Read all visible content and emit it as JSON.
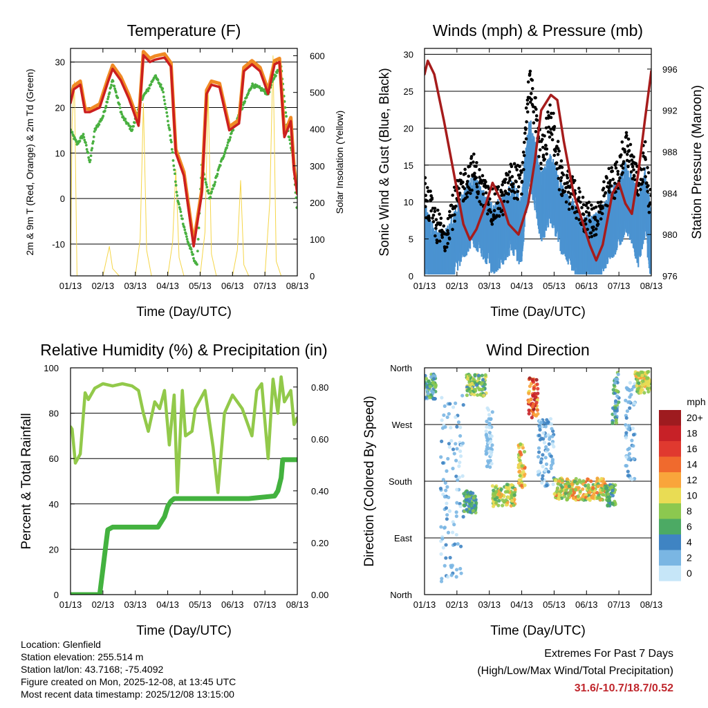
{
  "colors": {
    "temp_2m": "#cc1f1f",
    "temp_9m": "#f08a24",
    "dewpoint": "#49b040",
    "solar": "#f5d547",
    "gust": "#000000",
    "sonic": "#4b93d1",
    "pressure": "#a61c1c",
    "rh": "#92c94a",
    "precip": "#43b23f"
  },
  "x_ticks": [
    "01/13",
    "02/13",
    "03/13",
    "04/13",
    "05/13",
    "06/13",
    "07/13",
    "08/13"
  ],
  "time_label": "Time (Day/UTC)",
  "chart_data": [
    {
      "id": "temperature",
      "type": "line",
      "title": "Temperature (F)",
      "xlabel": "Time (Day/UTC)",
      "ylabel": "2m & 9m T (Red, Orange) & 2m Td (Green)",
      "ylabel2": "Solar Insolation (Yellow)",
      "ylim": [
        -17,
        33
      ],
      "y2lim": [
        0,
        620
      ],
      "yticks": [
        30,
        20,
        10,
        0,
        -10
      ],
      "ytick_labels": [
        "30",
        "20",
        "10",
        "0",
        "-10"
      ],
      "y2ticks": [
        600,
        500,
        400,
        300,
        200,
        100,
        0
      ],
      "x_range": [
        0,
        7
      ],
      "series": [
        {
          "name": "2m T",
          "x": [
            0,
            0.1,
            0.3,
            0.45,
            0.6,
            0.9,
            1.15,
            1.3,
            1.55,
            1.8,
            2.1,
            2.25,
            2.45,
            2.6,
            2.9,
            3.1,
            3.25,
            3.5,
            3.8,
            4.05,
            4.2,
            4.35,
            4.6,
            4.9,
            5.2,
            5.35,
            5.6,
            5.85,
            6.1,
            6.3,
            6.45,
            6.6,
            6.8,
            6.9,
            7
          ],
          "y": [
            21,
            24,
            25,
            19,
            19,
            20,
            25.5,
            28.5,
            26,
            22,
            16,
            31.5,
            30,
            30.5,
            31,
            29,
            10,
            5,
            -10.5,
            1,
            23,
            25,
            24.5,
            15,
            16.5,
            28,
            29.5,
            28,
            23,
            29.5,
            30,
            13.5,
            17,
            6,
            1
          ]
        },
        {
          "name": "9m T",
          "x": [
            0,
            0.1,
            0.3,
            0.45,
            0.6,
            0.9,
            1.15,
            1.3,
            1.55,
            1.8,
            2.1,
            2.25,
            2.45,
            2.6,
            2.9,
            3.1,
            3.25,
            3.5,
            3.8,
            4.05,
            4.2,
            4.35,
            4.6,
            4.9,
            5.2,
            5.35,
            5.6,
            5.85,
            6.1,
            6.3,
            6.45,
            6.6,
            6.8,
            6.9,
            7
          ],
          "y": [
            21.8,
            24.8,
            25.8,
            19.8,
            19.6,
            20.8,
            26.3,
            29.3,
            26.8,
            22.8,
            16.8,
            32.3,
            30.8,
            31.3,
            31.8,
            29.8,
            10.8,
            5.8,
            -9.7,
            1.8,
            23.8,
            25.8,
            25.3,
            15.8,
            17.3,
            28.8,
            30.3,
            28.8,
            23.8,
            30.3,
            30.8,
            14.3,
            17.8,
            6.8,
            1.8
          ]
        },
        {
          "name": "2m Td",
          "x": [
            0,
            0.2,
            0.4,
            0.6,
            0.75,
            1.0,
            1.3,
            1.6,
            1.9,
            2.2,
            2.4,
            2.6,
            2.85,
            3.1,
            3.3,
            3.6,
            3.9,
            4.05,
            4.3,
            4.6,
            5.0,
            5.3,
            5.6,
            5.9,
            6.1,
            6.3,
            6.5,
            6.7,
            6.85,
            7
          ],
          "y": [
            15,
            12,
            14,
            8,
            15,
            18,
            26,
            18,
            15,
            22,
            24,
            27,
            24,
            13,
            0,
            -9,
            -15,
            7,
            0,
            7,
            15,
            20,
            25,
            24,
            23,
            27,
            29,
            15,
            10,
            -3
          ]
        },
        {
          "name": "Solar Insolation",
          "y_axis": "right",
          "x": [
            0,
            0.05,
            0.12,
            0.2,
            0.4,
            0.65,
            0.85,
            1.0,
            1.1,
            1.2,
            1.3,
            1.5,
            1.75,
            2.0,
            2.15,
            2.25,
            2.35,
            2.5,
            2.75,
            3.0,
            3.15,
            3.25,
            3.35,
            3.5,
            3.75,
            4.0,
            4.15,
            4.25,
            4.35,
            4.5,
            4.75,
            5.0,
            5.15,
            5.25,
            5.35,
            5.5,
            5.75,
            6.0,
            6.15,
            6.25,
            6.35,
            6.5,
            6.75,
            7.0
          ],
          "y": [
            0,
            420,
            530,
            0,
            0,
            0,
            0,
            0,
            40,
            80,
            20,
            0,
            0,
            0,
            100,
            470,
            70,
            0,
            0,
            0,
            90,
            290,
            50,
            0,
            0,
            0,
            120,
            500,
            60,
            0,
            0,
            0,
            70,
            260,
            30,
            0,
            0,
            0,
            200,
            600,
            40,
            0,
            0,
            0
          ]
        }
      ]
    },
    {
      "id": "winds",
      "type": "scatter+line",
      "title": "Winds (mph) & Pressure (mb)",
      "xlabel": "Time (Day/UTC)",
      "ylabel": "Sonic Wind & Gust (Blue, Black)",
      "ylabel2": "Station Pressure (Maroon)",
      "ylim": [
        0,
        30.8
      ],
      "y2lim": [
        976,
        998
      ],
      "yticks": [
        0,
        5,
        10,
        15,
        20,
        25,
        30
      ],
      "y2ticks": [
        976,
        980,
        984,
        988,
        992,
        996
      ],
      "x_range": [
        0,
        7
      ],
      "series": [
        {
          "name": "Gust",
          "x": [
            0,
            0.3,
            0.6,
            0.9,
            1.2,
            1.5,
            1.8,
            2.1,
            2.4,
            2.7,
            3.0,
            3.1,
            3.25,
            3.4,
            3.6,
            3.9,
            4.2,
            4.5,
            4.8,
            5.1,
            5.4,
            5.7,
            6.0,
            6.2,
            6.4,
            6.6,
            6.8,
            7.0
          ],
          "y": [
            11,
            7,
            5,
            9,
            12,
            14,
            11,
            9,
            10,
            13,
            12,
            19,
            26,
            22,
            16,
            21,
            13,
            11,
            9,
            7,
            8,
            12,
            13,
            18,
            15,
            12,
            16,
            9
          ]
        },
        {
          "name": "Sonic Wind",
          "x": [
            0,
            0.3,
            0.6,
            0.9,
            1.2,
            1.5,
            1.8,
            2.1,
            2.4,
            2.7,
            3.0,
            3.1,
            3.25,
            3.4,
            3.6,
            3.9,
            4.2,
            4.5,
            4.8,
            5.1,
            5.4,
            5.7,
            6.0,
            6.2,
            6.4,
            6.6,
            6.8,
            7.0
          ],
          "y": [
            6,
            3,
            2,
            5,
            8,
            10,
            8,
            6,
            7,
            9,
            7,
            13,
            18,
            15,
            10,
            13,
            9,
            7,
            5,
            4,
            5,
            8,
            9,
            12,
            10,
            7,
            11,
            5
          ]
        },
        {
          "name": "Station Pressure",
          "y_axis": "right",
          "x": [
            0,
            0.1,
            0.3,
            0.6,
            0.9,
            1.2,
            1.4,
            1.6,
            1.9,
            2.1,
            2.4,
            2.6,
            2.9,
            3.2,
            3.4,
            3.6,
            3.9,
            4.1,
            4.3,
            4.6,
            4.9,
            5.1,
            5.3,
            5.5,
            5.8,
            6.0,
            6.2,
            6.4,
            6.6,
            6.8,
            7.0
          ],
          "y": [
            995.5,
            996.8,
            995.5,
            991,
            986,
            981,
            979.5,
            980.5,
            983,
            985,
            983,
            981,
            980,
            983,
            987,
            992,
            993.5,
            993,
            989,
            984,
            981,
            979,
            977.5,
            979,
            984,
            985,
            983,
            982,
            986,
            991,
            995.8
          ]
        }
      ]
    },
    {
      "id": "humidity",
      "type": "line",
      "title": "Relative Humidity (%) & Precipitation (in)",
      "xlabel": "Time (Day/UTC)",
      "ylabel": "Percent & Total Rainfall",
      "ylim": [
        0,
        100
      ],
      "y2lim": [
        0,
        0.874
      ],
      "yticks": [
        0,
        20,
        40,
        60,
        80,
        100
      ],
      "y2ticks": [
        0.0,
        0.2,
        0.4,
        0.6,
        0.8
      ],
      "y2tick_labels": [
        "0.00",
        "0.20",
        "0.40",
        "0.60",
        "0.80"
      ],
      "x_range": [
        0,
        7
      ],
      "series": [
        {
          "name": "Relative Humidity",
          "x": [
            0,
            0.05,
            0.15,
            0.3,
            0.45,
            0.55,
            0.75,
            1.0,
            1.3,
            1.6,
            1.9,
            2.1,
            2.25,
            2.4,
            2.6,
            2.75,
            2.9,
            3.05,
            3.2,
            3.3,
            3.45,
            3.55,
            3.75,
            3.85,
            4.0,
            4.15,
            4.4,
            4.55,
            4.75,
            5.0,
            5.3,
            5.6,
            5.75,
            5.9,
            6.1,
            6.25,
            6.4,
            6.5,
            6.6,
            6.8,
            6.9,
            7.0
          ],
          "y": [
            74,
            73,
            58,
            62,
            89,
            86,
            91,
            93,
            92,
            93,
            92,
            90,
            80,
            72,
            85,
            82,
            90,
            66,
            88,
            45,
            90,
            70,
            72,
            82,
            86,
            90,
            65,
            45,
            80,
            88,
            82,
            70,
            90,
            93,
            60,
            95,
            80,
            96,
            85,
            90,
            75,
            78
          ]
        },
        {
          "name": "Total Precipitation",
          "y_axis": "right",
          "x": [
            0,
            0.9,
            1.0,
            1.1,
            1.15,
            1.3,
            2.7,
            2.8,
            2.9,
            3.0,
            3.1,
            3.2,
            5.5,
            6.3,
            6.4,
            6.5,
            6.55,
            7.0
          ],
          "y": [
            0,
            0,
            0.1,
            0.2,
            0.25,
            0.26,
            0.26,
            0.28,
            0.3,
            0.34,
            0.36,
            0.37,
            0.37,
            0.38,
            0.4,
            0.45,
            0.52,
            0.52
          ]
        }
      ]
    },
    {
      "id": "wind_direction",
      "type": "scatter",
      "title": "Wind Direction",
      "xlabel": "Time (Day/UTC)",
      "ylabel": "Direction (Colored By Speed)",
      "ylim": [
        0,
        360
      ],
      "ytick_labels": [
        "North",
        "East",
        "South",
        "West",
        "North"
      ],
      "yticks": [
        0,
        90,
        180,
        270,
        360
      ],
      "x_range": [
        0,
        7
      ],
      "colorbar": {
        "title": "mph",
        "labels": [
          "20+",
          "18",
          "16",
          "14",
          "12",
          "10",
          "8",
          "6",
          "4",
          "2",
          "0"
        ],
        "colors": [
          "#9e1b1f",
          "#c72127",
          "#e0392f",
          "#f06a2d",
          "#f9a53b",
          "#e9dc54",
          "#8cc84f",
          "#4caa64",
          "#3f84c3",
          "#7ab6e3",
          "#c6e6f8"
        ]
      },
      "clusters": [
        {
          "x": [
            0.0,
            0.35
          ],
          "dir": [
            310,
            350
          ],
          "speed": [
            2,
            8
          ]
        },
        {
          "x": [
            0.5,
            1.2
          ],
          "dir": [
            20,
            320
          ],
          "speed": [
            0,
            4
          ]
        },
        {
          "x": [
            1.2,
            1.6
          ],
          "dir": [
            130,
            165
          ],
          "speed": [
            3,
            8
          ]
        },
        {
          "x": [
            1.3,
            1.9
          ],
          "dir": [
            315,
            350
          ],
          "speed": [
            4,
            10
          ]
        },
        {
          "x": [
            1.9,
            2.1
          ],
          "dir": [
            200,
            300
          ],
          "speed": [
            0,
            3
          ]
        },
        {
          "x": [
            2.1,
            2.8
          ],
          "dir": [
            140,
            175
          ],
          "speed": [
            6,
            12
          ]
        },
        {
          "x": [
            2.9,
            3.1
          ],
          "dir": [
            170,
            240
          ],
          "speed": [
            8,
            14
          ]
        },
        {
          "x": [
            3.2,
            3.5
          ],
          "dir": [
            280,
            345
          ],
          "speed": [
            10,
            20
          ]
        },
        {
          "x": [
            3.5,
            4.0
          ],
          "dir": [
            170,
            280
          ],
          "speed": [
            0,
            4
          ]
        },
        {
          "x": [
            4.0,
            5.6
          ],
          "dir": [
            150,
            185
          ],
          "speed": [
            6,
            14
          ]
        },
        {
          "x": [
            5.6,
            5.9
          ],
          "dir": [
            140,
            175
          ],
          "speed": [
            4,
            9
          ]
        },
        {
          "x": [
            5.8,
            6.0
          ],
          "dir": [
            270,
            355
          ],
          "speed": [
            2,
            8
          ]
        },
        {
          "x": [
            6.2,
            6.5
          ],
          "dir": [
            180,
            340
          ],
          "speed": [
            0,
            4
          ]
        },
        {
          "x": [
            6.5,
            7.0
          ],
          "dir": [
            320,
            355
          ],
          "speed": [
            6,
            12
          ]
        }
      ]
    }
  ],
  "info": {
    "location": "Location: Glenfield",
    "elevation": "Station elevation: 255.514 m",
    "latlon": "Station lat/lon: 43.7168; -75.4092",
    "created": "Figure created on Mon, 2025-12-08, at 13:45 UTC",
    "recent": "Most recent data timestamp: 2025/12/08 13:15:00"
  },
  "extremes": {
    "title": "Extremes For Past 7 Days",
    "subtitle": "(High/Low/Max Wind/Total Precipitation)",
    "values": "31.6/-10.7/18.7/0.52"
  }
}
